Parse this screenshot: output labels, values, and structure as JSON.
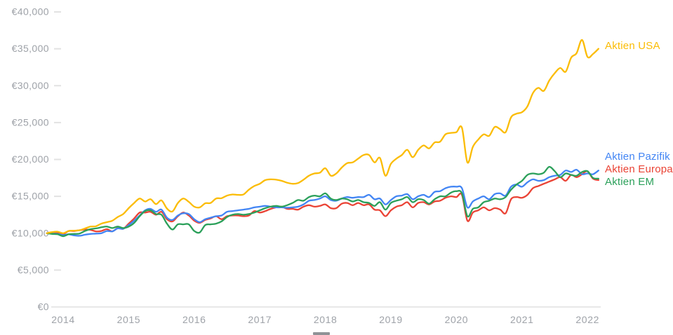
{
  "chart_data": {
    "type": "line",
    "title": "",
    "currency": "EUR",
    "x_axis": {
      "tick_labels": [
        "2014",
        "2015",
        "2016",
        "2017",
        "2018",
        "2019",
        "2020",
        "2021",
        "2022"
      ],
      "start_year_fraction": 2013.75,
      "end_year_fraction": 2022.17,
      "cadence": "monthly"
    },
    "y_axis": {
      "tick_labels": [
        "€40,000",
        "€35,000",
        "€30,000",
        "€25,000",
        "€20,000",
        "€15,000",
        "€10,000",
        "€5,000",
        "€0"
      ],
      "min": 0,
      "max": 40000,
      "tick_step": 5000
    },
    "grid": "none",
    "legend_position": "right-of-line-ends",
    "axis_line_color": "#E8E8E8",
    "tick_dash_color": "#E2E2E2",
    "tick_label_color": "#9EA2A8",
    "series": [
      {
        "name": "Aktien USA",
        "color": "#FBBC04",
        "values": [
          10000,
          10150,
          10200,
          10000,
          10300,
          10350,
          10400,
          10650,
          10900,
          10950,
          11300,
          11500,
          11700,
          12200,
          12600,
          13400,
          14100,
          14700,
          14300,
          14600,
          13950,
          14450,
          13350,
          12950,
          14100,
          14700,
          14250,
          13600,
          13500,
          14050,
          14100,
          14700,
          14750,
          15100,
          15250,
          15200,
          15250,
          15900,
          16400,
          16700,
          17200,
          17300,
          17250,
          17100,
          16850,
          16700,
          16800,
          17250,
          17800,
          18100,
          18200,
          18800,
          17800,
          18100,
          18900,
          19500,
          19600,
          20100,
          20600,
          20600,
          19600,
          20200,
          17800,
          19400,
          20100,
          20600,
          21300,
          20300,
          21300,
          21900,
          21500,
          22300,
          22400,
          23400,
          23600,
          23700,
          24300,
          19600,
          21700,
          22700,
          23400,
          23200,
          24400,
          24100,
          23700,
          25700,
          26200,
          26400,
          27200,
          29000,
          29700,
          29300,
          30700,
          31700,
          32400,
          31900,
          33800,
          34400,
          36200,
          33900,
          34300,
          35000
        ]
      },
      {
        "name": "Aktien Pazifik",
        "color": "#4285F4",
        "values": [
          10000,
          9950,
          9900,
          9750,
          9850,
          9700,
          9650,
          9800,
          9900,
          9950,
          10000,
          10300,
          10250,
          10650,
          10600,
          11100,
          11700,
          12400,
          13100,
          13300,
          12900,
          13200,
          12100,
          11800,
          12400,
          12700,
          12600,
          11900,
          11500,
          11900,
          12100,
          12300,
          12400,
          12900,
          13000,
          13100,
          13200,
          13300,
          13500,
          13600,
          13700,
          13600,
          13500,
          13500,
          13450,
          13500,
          13600,
          13900,
          14400,
          14500,
          14700,
          15000,
          14500,
          14400,
          14700,
          14900,
          14800,
          14900,
          14900,
          15200,
          14600,
          14700,
          13900,
          14500,
          15000,
          15100,
          15300,
          14600,
          15000,
          15200,
          14900,
          15600,
          15700,
          16100,
          16300,
          16300,
          16100,
          13500,
          14300,
          14700,
          15000,
          14600,
          15300,
          15400,
          15100,
          16300,
          16600,
          16300,
          16900,
          17300,
          17100,
          17200,
          17600,
          17800,
          17900,
          18500,
          18300,
          18600,
          18000,
          18100,
          18000,
          18500
        ]
      },
      {
        "name": "Aktien Europa",
        "color": "#EA4335",
        "values": [
          10000,
          10050,
          10100,
          9900,
          10300,
          10300,
          10400,
          10500,
          10450,
          10250,
          10300,
          10550,
          10250,
          10700,
          10600,
          11300,
          12000,
          12800,
          12800,
          12900,
          12500,
          12900,
          11900,
          11600,
          12300,
          12800,
          12400,
          11700,
          11400,
          11800,
          12000,
          12300,
          11900,
          12300,
          12400,
          12400,
          12300,
          12400,
          13000,
          12800,
          13000,
          13300,
          13500,
          13600,
          13300,
          13300,
          13200,
          13600,
          13800,
          13600,
          13700,
          13900,
          13400,
          13400,
          14000,
          14100,
          13800,
          14100,
          13800,
          13900,
          13200,
          13100,
          12300,
          13100,
          13600,
          13800,
          14200,
          13500,
          14100,
          14200,
          13900,
          14300,
          14400,
          14800,
          15000,
          14900,
          15200,
          11700,
          12800,
          13100,
          13500,
          13100,
          13400,
          13200,
          12700,
          14600,
          14900,
          14800,
          15200,
          16100,
          16400,
          16700,
          17000,
          17300,
          17600,
          17100,
          17900,
          17600,
          18000,
          18400,
          17400,
          17200
        ]
      },
      {
        "name": "Aktien EM",
        "color": "#2BA05A",
        "values": [
          10000,
          9900,
          9850,
          9600,
          9850,
          9900,
          9950,
          10300,
          10550,
          10650,
          10800,
          10900,
          10700,
          10900,
          10700,
          10900,
          11400,
          12300,
          13000,
          13100,
          12600,
          12500,
          11300,
          10500,
          11200,
          11200,
          11200,
          10300,
          10100,
          11100,
          11200,
          11300,
          11600,
          12200,
          12500,
          12600,
          12500,
          12600,
          12800,
          13100,
          13400,
          13600,
          13700,
          13600,
          13800,
          14100,
          14500,
          14400,
          14900,
          15100,
          15000,
          15400,
          14700,
          14500,
          14700,
          14600,
          14300,
          14500,
          14200,
          14100,
          13700,
          14200,
          13200,
          14100,
          14400,
          14600,
          14900,
          14200,
          14600,
          14500,
          14000,
          14600,
          15000,
          15000,
          15500,
          15700,
          15400,
          12300,
          13300,
          13500,
          14200,
          14400,
          14700,
          14600,
          14900,
          15900,
          16600,
          17100,
          17900,
          18100,
          18000,
          18200,
          19000,
          18400,
          17600,
          18100,
          17900,
          17800,
          18300,
          18400,
          17500,
          17400
        ]
      }
    ]
  }
}
